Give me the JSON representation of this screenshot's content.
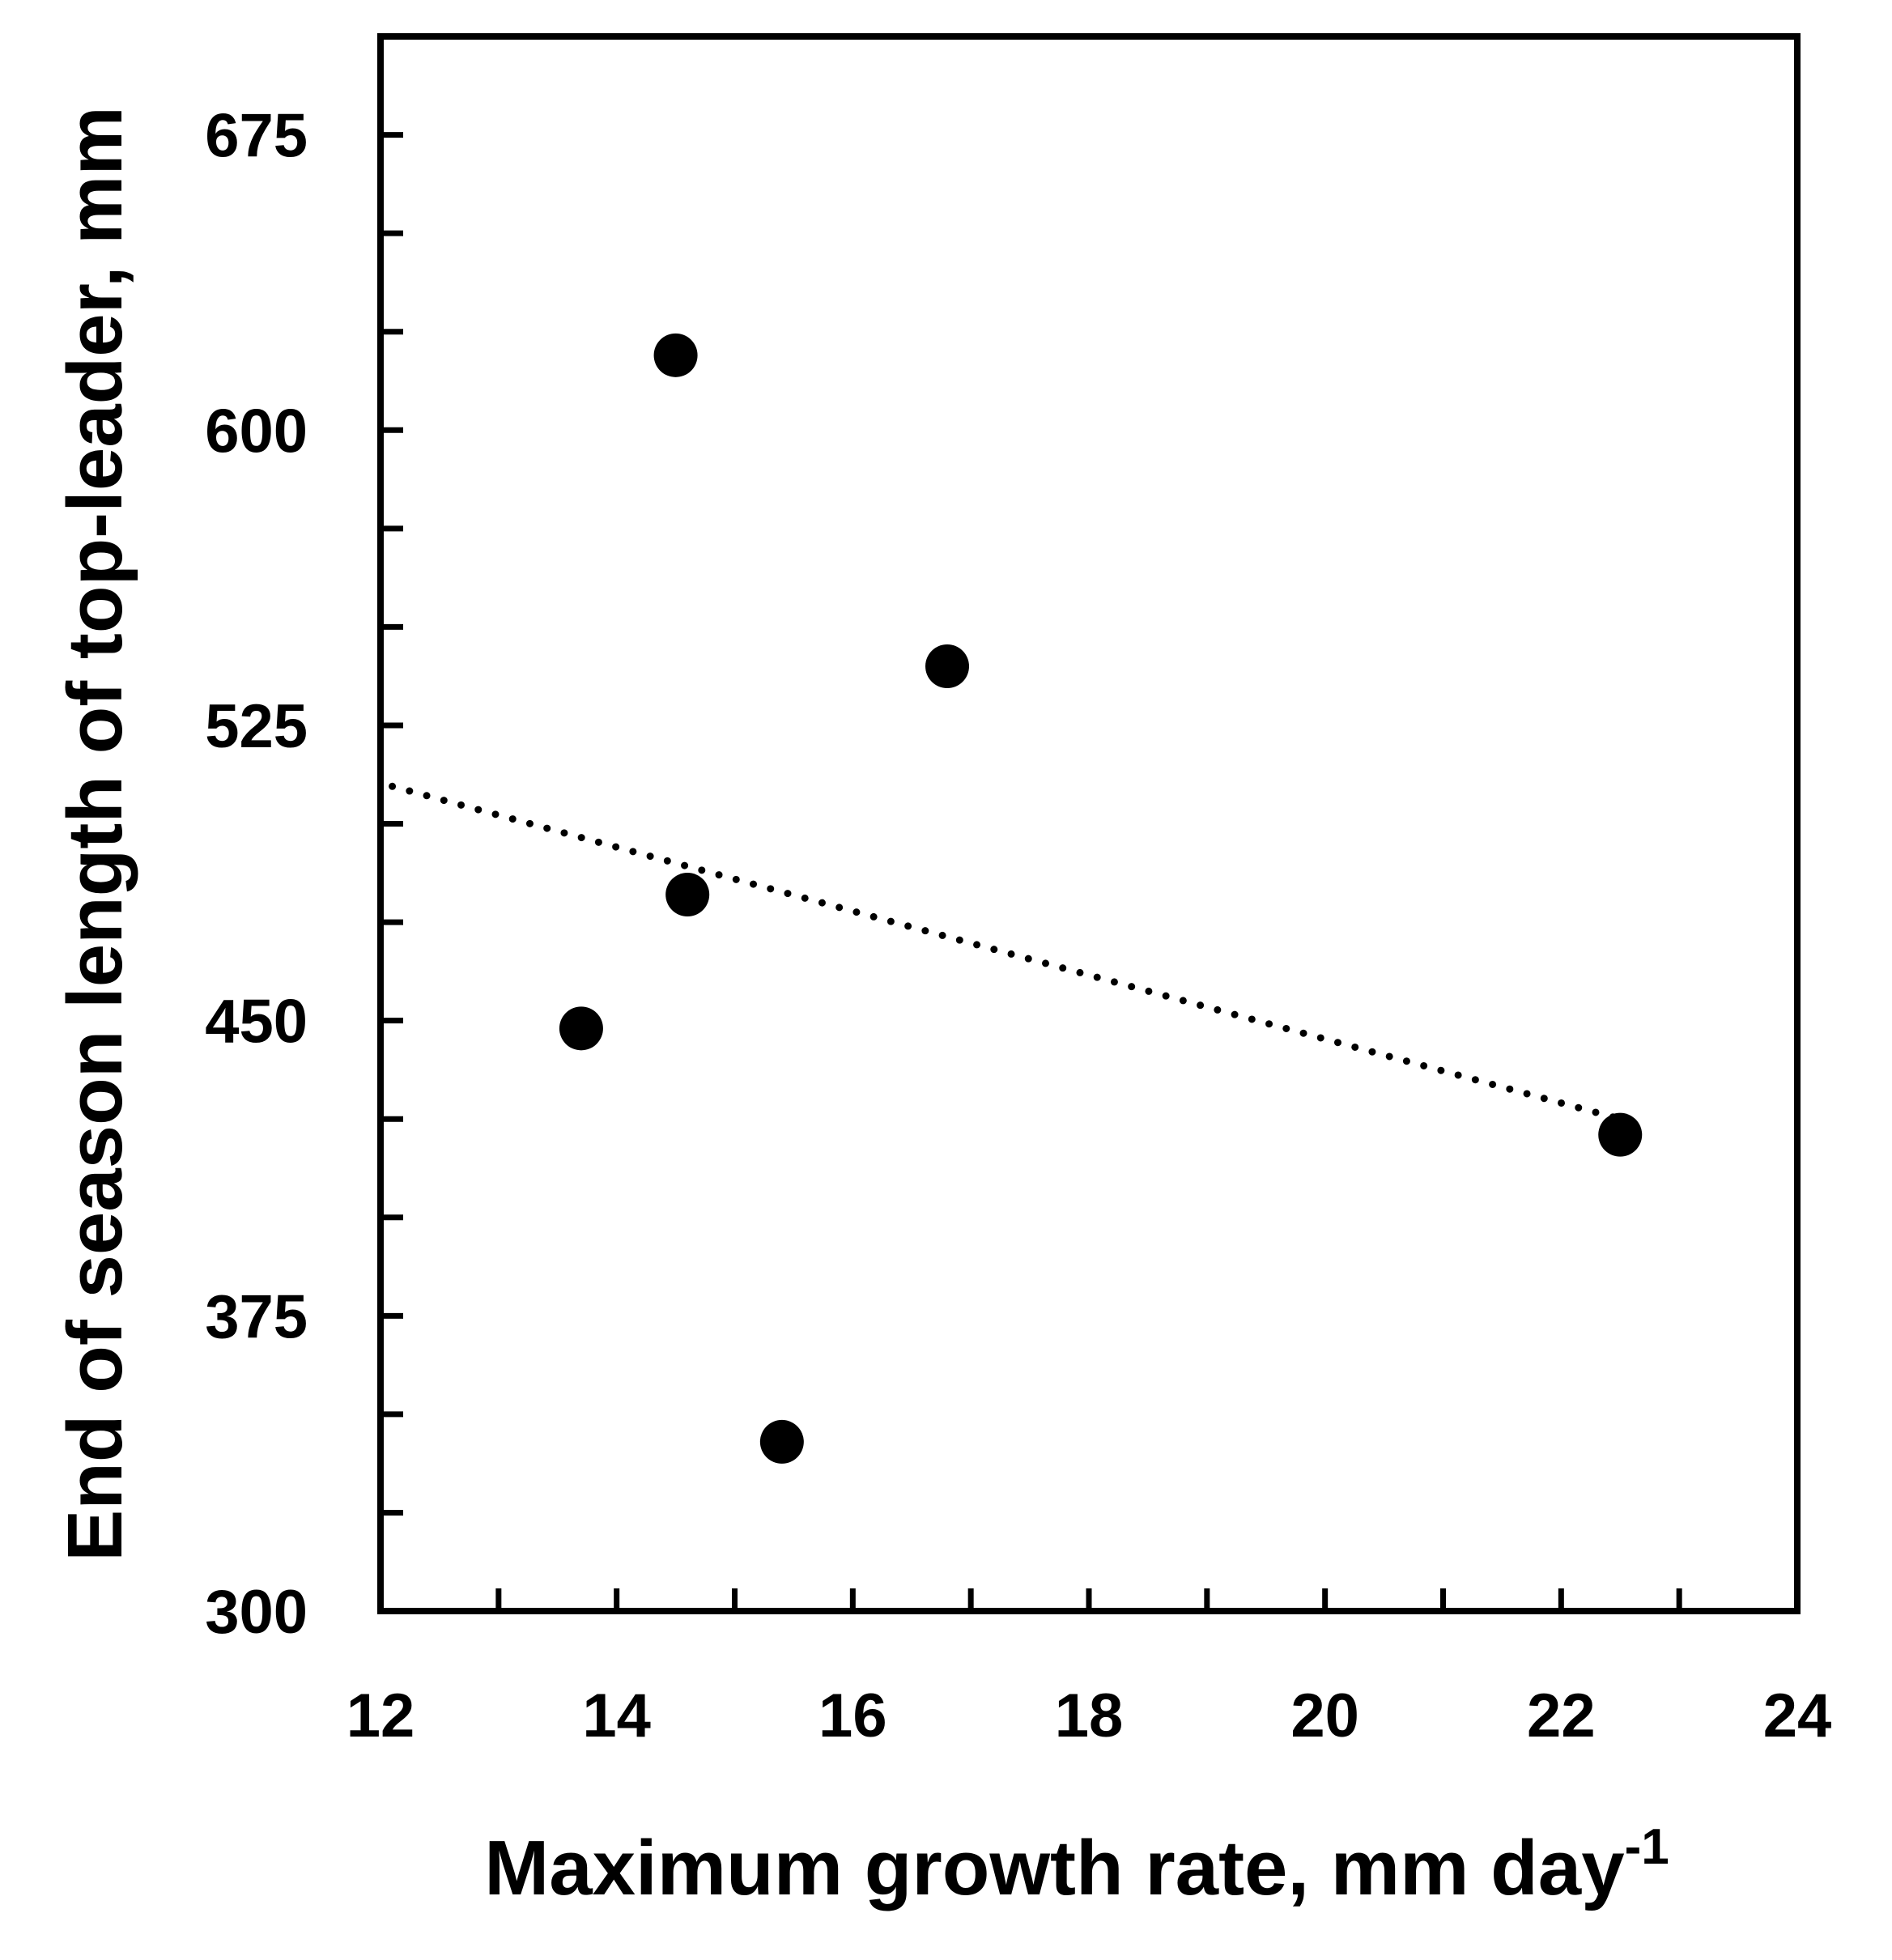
{
  "chart_data": {
    "type": "scatter",
    "title": "",
    "xlabel": "Maximum growth rate, mm day",
    "xlabel_superscript": "-1",
    "ylabel": "End of season length of top-leader, mm",
    "xlim": [
      12,
      24
    ],
    "ylim": [
      300,
      700
    ],
    "x_ticks": [
      12,
      14,
      16,
      18,
      20,
      22,
      24
    ],
    "x_minor_step": 1,
    "y_ticks": [
      300,
      375,
      450,
      525,
      600,
      675
    ],
    "y_minor_step": 25,
    "grid": false,
    "legend": "none",
    "series": [
      {
        "x": [
          13.7,
          14.5,
          14.6,
          15.4,
          16.8,
          22.5
        ],
        "y": [
          448,
          619,
          482,
          343,
          540,
          421
        ],
        "marker": "filled-circle",
        "color": "#000000"
      }
    ],
    "trendline": {
      "style": "dotted",
      "x": [
        12.1,
        22.5
      ],
      "y": [
        509.5,
        425.0
      ]
    }
  }
}
